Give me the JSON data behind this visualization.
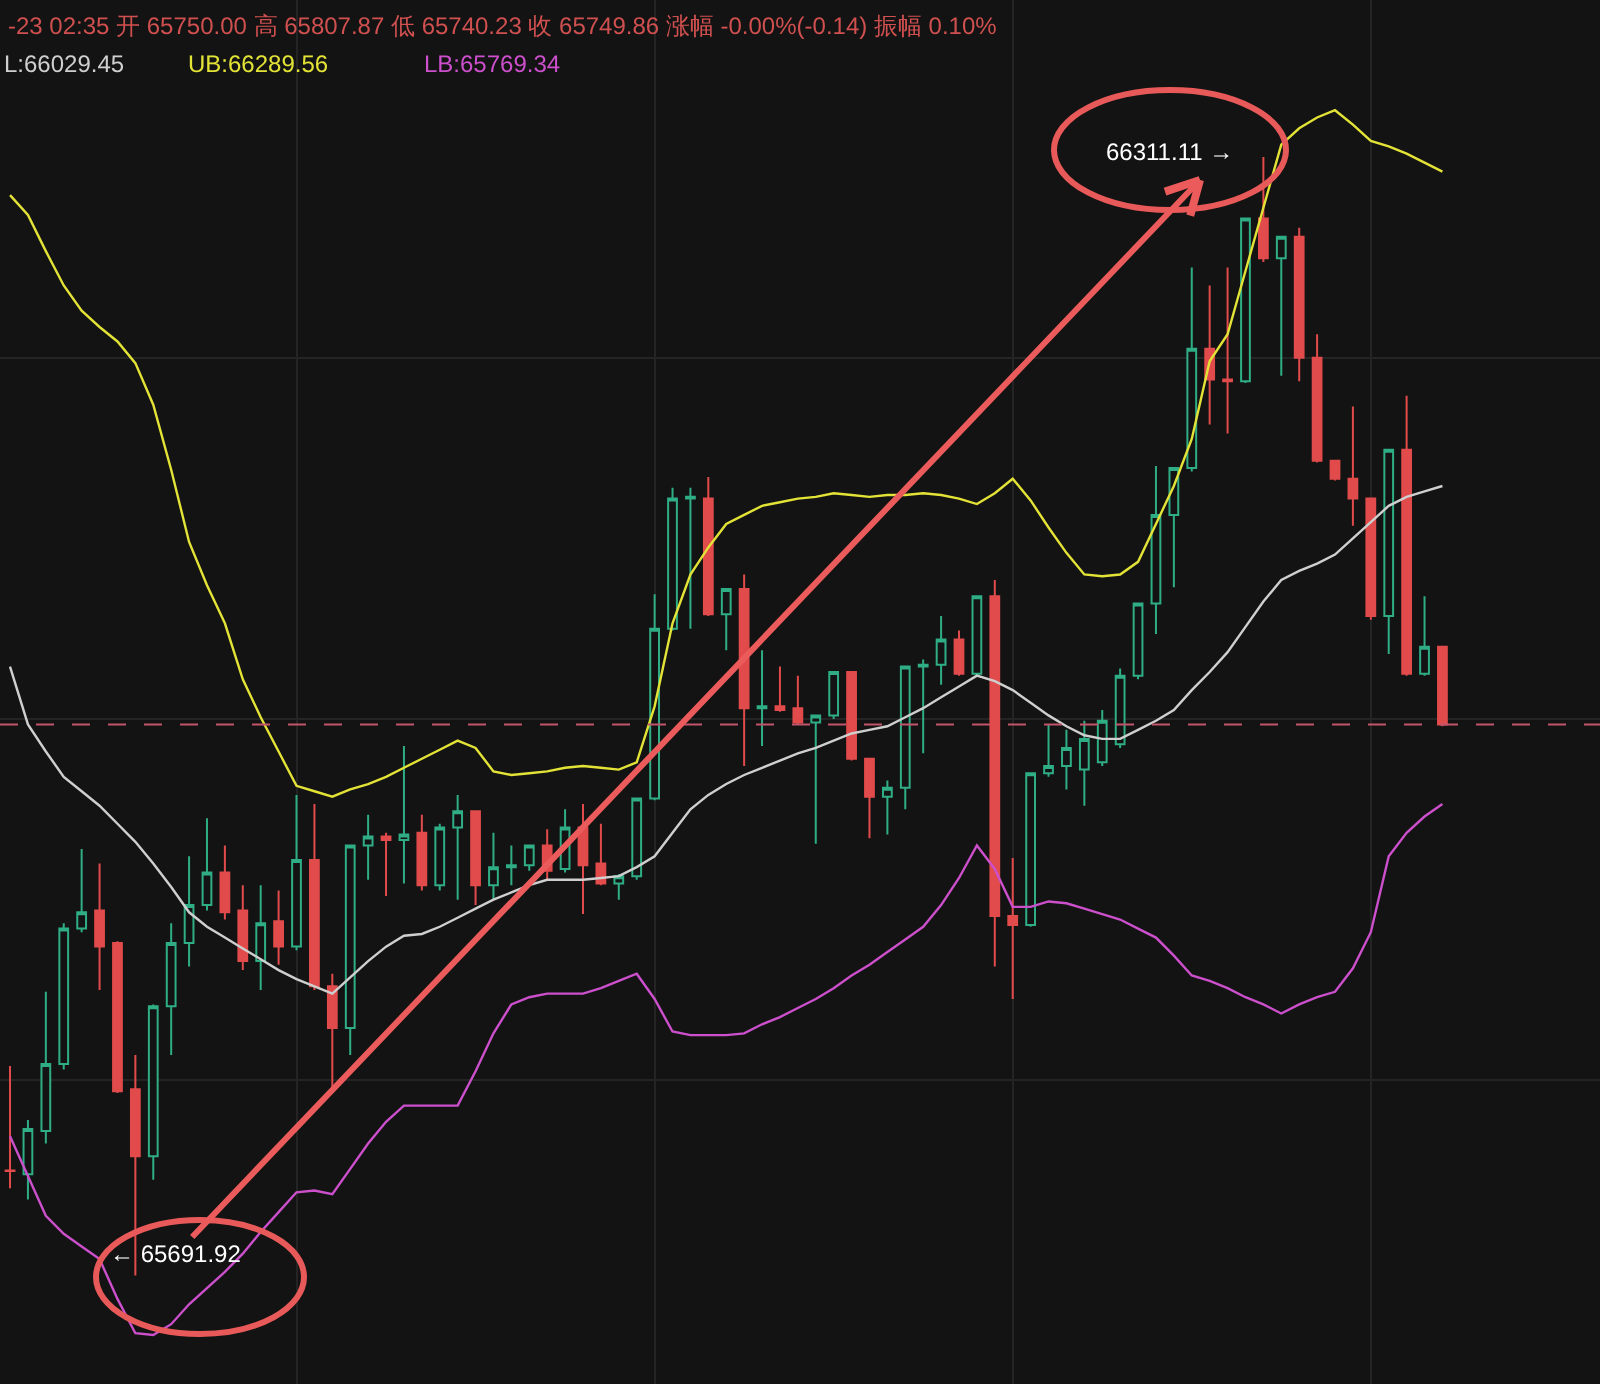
{
  "chart_data": {
    "type": "candlestick",
    "categories": [
      null,
      null,
      null,
      null,
      null,
      null,
      null,
      null,
      null,
      null,
      null,
      null,
      null,
      null,
      null,
      null,
      null,
      null,
      null,
      null,
      null,
      null,
      null,
      null,
      null,
      null,
      null,
      null,
      null,
      null,
      null,
      null,
      null,
      null,
      null,
      null,
      null,
      null,
      null,
      null,
      null,
      null,
      null,
      null,
      null,
      null,
      null,
      null,
      null,
      null,
      null,
      null,
      null,
      null,
      null,
      null,
      null,
      null,
      null,
      null,
      null,
      null,
      null,
      null,
      null,
      null,
      null,
      null,
      null,
      null,
      null,
      null,
      null,
      null,
      null,
      null,
      null,
      null,
      null,
      null,
      null
    ],
    "ohlc": [
      [
        65750.0,
        65807.87,
        65740.23,
        65749.86
      ],
      [
        65748,
        65778,
        65734,
        65773
      ],
      [
        65772,
        65849,
        65765,
        65809
      ],
      [
        65809,
        65887,
        65806,
        65884
      ],
      [
        65884,
        65928,
        65882,
        65893
      ],
      [
        65894,
        65920,
        65850,
        65874
      ],
      [
        65876,
        65877,
        65793,
        65794
      ],
      [
        65795,
        65814,
        65691.92,
        65758
      ],
      [
        65758,
        65842,
        65745,
        65841
      ],
      [
        65841,
        65887,
        65814,
        65876
      ],
      [
        65876,
        65924,
        65863,
        65897
      ],
      [
        65897,
        65945,
        65894,
        65915
      ],
      [
        65915,
        65930,
        65889,
        65893
      ],
      [
        65894,
        65908,
        65861,
        65866
      ],
      [
        65866,
        65908,
        65850,
        65887
      ],
      [
        65888,
        65905,
        65864,
        65874
      ],
      [
        65874,
        65958,
        65872,
        65922
      ],
      [
        65922,
        65953,
        65850,
        65852
      ],
      [
        65852,
        65859,
        65795,
        65829
      ],
      [
        65829,
        65930,
        65814,
        65930
      ],
      [
        65930,
        65947,
        65911,
        65935
      ],
      [
        65935,
        65937,
        65902,
        65933
      ],
      [
        65933,
        65985,
        65909,
        65936
      ],
      [
        65937,
        65947,
        65905,
        65908
      ],
      [
        65908,
        65942,
        65905,
        65940
      ],
      [
        65940,
        65958,
        65900,
        65949
      ],
      [
        65949,
        65949,
        65897,
        65908
      ],
      [
        65908,
        65937,
        65900,
        65918
      ],
      [
        65918,
        65930,
        65908,
        65919
      ],
      [
        65919,
        65930,
        65916,
        65930
      ],
      [
        65930,
        65939,
        65911,
        65916
      ],
      [
        65917,
        65950,
        65915,
        65940
      ],
      [
        65940,
        65953,
        65892,
        65919
      ],
      [
        65920,
        65942,
        65908,
        65909
      ],
      [
        65909,
        65914,
        65900,
        65913
      ],
      [
        65913,
        65956,
        65911,
        65956
      ],
      [
        65956,
        66069,
        65955,
        66050
      ],
      [
        66050,
        66128,
        66049,
        66122
      ],
      [
        66122,
        66128,
        66050,
        66123
      ],
      [
        66122,
        66134,
        66057,
        66058
      ],
      [
        66058,
        66072,
        66038,
        66072
      ],
      [
        66072,
        66080,
        65974,
        66006
      ],
      [
        66006,
        66038,
        65985,
        66007
      ],
      [
        66007,
        66029,
        66004,
        66005
      ],
      [
        66006,
        66024,
        65997,
        65998
      ],
      [
        65998,
        66002,
        65931,
        66002
      ],
      [
        66002,
        66026,
        66000,
        66026
      ],
      [
        66026,
        66026,
        65977,
        65978
      ],
      [
        65978,
        65978,
        65934,
        65957
      ],
      [
        65957,
        65966,
        65936,
        65962
      ],
      [
        65962,
        66029,
        65950,
        66029
      ],
      [
        66029,
        66033,
        65981,
        66030
      ],
      [
        66030,
        66057,
        66019,
        66044
      ],
      [
        66044,
        66049,
        66024,
        66025
      ],
      [
        66025,
        66068,
        66024,
        66068
      ],
      [
        66068,
        66077,
        65863,
        65891
      ],
      [
        65891,
        65923,
        65845,
        65886
      ],
      [
        65886,
        65970,
        65885,
        65970
      ],
      [
        65970,
        65997,
        65968,
        65974
      ],
      [
        65974,
        65994,
        65961,
        65984
      ],
      [
        65972,
        65999,
        65952,
        65989
      ],
      [
        65976,
        66005,
        65974,
        65999
      ],
      [
        65986,
        66028,
        65984,
        66024
      ],
      [
        66024,
        66064,
        66022,
        66064
      ],
      [
        66064,
        66140,
        66047,
        66113
      ],
      [
        66113,
        66139,
        66073,
        66139
      ],
      [
        66139,
        66250,
        66137,
        66205
      ],
      [
        66205,
        66240,
        66163,
        66188
      ],
      [
        66188,
        66250,
        66158,
        66187
      ],
      [
        66187,
        66277,
        66186,
        66277
      ],
      [
        66277,
        66311.11,
        66253,
        66255
      ],
      [
        66255,
        66267,
        66190,
        66267
      ],
      [
        66267,
        66272,
        66187,
        66200
      ],
      [
        66200,
        66213,
        66142,
        66143
      ],
      [
        66143,
        66143,
        66132,
        66133
      ],
      [
        66133,
        66173,
        66107,
        66122
      ],
      [
        66122,
        66122,
        66055,
        66057
      ],
      [
        66057,
        66149,
        66036,
        66149
      ],
      [
        66149,
        66179,
        66024,
        66025
      ],
      [
        66025,
        66068,
        66024,
        66040
      ],
      [
        66040,
        66040,
        65996,
        65997
      ]
    ],
    "colors": [
      "#e24b4b",
      "#2fae86",
      "#2fae86",
      "#2fae86",
      "#2fae86",
      "#e24b4b",
      "#e24b4b",
      "#e24b4b",
      "#2fae86",
      "#2fae86",
      "#2fae86",
      "#2fae86",
      "#e24b4b",
      "#e24b4b",
      "#2fae86",
      "#e24b4b",
      "#2fae86",
      "#e24b4b",
      "#e24b4b",
      "#2fae86",
      "#2fae86",
      "#e24b4b",
      "#2fae86",
      "#e24b4b",
      "#2fae86",
      "#2fae86",
      "#e24b4b",
      "#2fae86",
      "#2fae86",
      "#2fae86",
      "#e24b4b",
      "#2fae86",
      "#e24b4b",
      "#e24b4b",
      "#2fae86",
      "#2fae86",
      "#2fae86",
      "#2fae86",
      "#2fae86",
      "#e24b4b",
      "#2fae86",
      "#e24b4b",
      "#2fae86",
      "#e24b4b",
      "#e24b4b",
      "#2fae86",
      "#2fae86",
      "#e24b4b",
      "#e24b4b",
      "#2fae86",
      "#2fae86",
      "#2fae86",
      "#2fae86",
      "#e24b4b",
      "#2fae86",
      "#e24b4b",
      "#e24b4b",
      "#2fae86",
      "#2fae86",
      "#2fae86",
      "#2fae86",
      "#2fae86",
      "#2fae86",
      "#2fae86",
      "#2fae86",
      "#2fae86",
      "#2fae86",
      "#e24b4b",
      "#e24b4b",
      "#2fae86",
      "#e24b4b",
      "#2fae86",
      "#e24b4b",
      "#e24b4b",
      "#e24b4b",
      "#e24b4b",
      "#e24b4b",
      "#2fae86",
      "#e24b4b",
      "#2fae86",
      "#e24b4b"
    ],
    "series": [
      {
        "type": "line",
        "color": "#cfcfcf",
        "values": [
          66029,
          65997,
          65982,
          65968,
          65960,
          65952,
          65942,
          65932,
          65920,
          65907,
          65893,
          65885,
          65879,
          65873,
          65867,
          65861,
          65856,
          65852,
          65848,
          65857,
          65866,
          65874,
          65880,
          65881,
          65885,
          65890,
          65895,
          65900,
          65904,
          65908,
          65911,
          65911,
          65911,
          65912,
          65913,
          65918,
          65924,
          65937,
          65950,
          65958,
          65964,
          65969,
          65973,
          65977,
          65981,
          65984,
          65988,
          65992,
          65994,
          65996,
          66001,
          66006,
          66012,
          66018,
          66024,
          66021,
          66016,
          66009,
          66002,
          65996,
          65991,
          65989,
          65989,
          65994,
          65999,
          66005,
          66016,
          66026,
          66037,
          66051,
          66065,
          66077,
          66082,
          66086,
          66091,
          66100,
          66109,
          66118,
          66123,
          66126,
          66129
        ]
      },
      {
        "type": "line",
        "color": "#e3e337",
        "values": [
          66290,
          66279,
          66259,
          66240,
          66226,
          66217,
          66209,
          66197,
          66174,
          66138,
          66098,
          66074,
          66053,
          66022,
          66001,
          65982,
          65963,
          65960,
          65957,
          65961,
          65964,
          65968,
          65973,
          65978,
          65983,
          65988,
          65984,
          65971,
          65969,
          65970,
          65971,
          65973,
          65974,
          65973,
          65972,
          65976,
          66007,
          66053,
          66080,
          66095,
          66108,
          66113,
          66118,
          66120,
          66122,
          66123,
          66125,
          66124,
          66123,
          66124,
          66124,
          66125,
          66124,
          66122,
          66119,
          66125,
          66133,
          66121,
          66106,
          66092,
          66080,
          66079,
          66080,
          66087,
          66108,
          66129,
          66155,
          66198,
          66213,
          66248,
          66283,
          66318,
          66327,
          66333,
          66337,
          66329,
          66320,
          66317,
          66313,
          66308,
          66303
        ]
      },
      {
        "type": "line",
        "color": "#cc4fcc",
        "values": [
          65769,
          65747,
          65725,
          65715,
          65708,
          65701,
          65679,
          65660,
          65659,
          65665,
          65676,
          65685,
          65694,
          65704,
          65716,
          65727,
          65738,
          65739,
          65737,
          65751,
          65765,
          65777,
          65786,
          65786,
          65786,
          65786,
          65805,
          65826,
          65842,
          65846,
          65848,
          65848,
          65848,
          65851,
          65855,
          65859,
          65845,
          65827,
          65825,
          65825,
          65825,
          65826,
          65831,
          65835,
          65840,
          65845,
          65851,
          65858,
          65864,
          65871,
          65878,
          65885,
          65897,
          65912,
          65930,
          65917,
          65896,
          65896,
          65899,
          65898,
          65895,
          65892,
          65889,
          65884,
          65879,
          65869,
          65858,
          65855,
          65851,
          65846,
          65842,
          65837,
          65842,
          65846,
          65849,
          65862,
          65882,
          65924,
          65937,
          65946,
          65953
        ]
      }
    ],
    "annotations": [
      "-23 02:35 开 65750.00 高 65807.87 低 65740.23 收 65749.86 涨幅 -0.00%(-0.14) 振幅 0.10%",
      "L:66029.45",
      "UB:66289.56",
      "LB:65769.34",
      "66311.11 →",
      "← 65691.92"
    ],
    "ref_lines": [
      {
        "axis": "y",
        "value": 65997,
        "color": "#c2556b",
        "line_style": "dashed"
      }
    ],
    "grid": true
  }
}
